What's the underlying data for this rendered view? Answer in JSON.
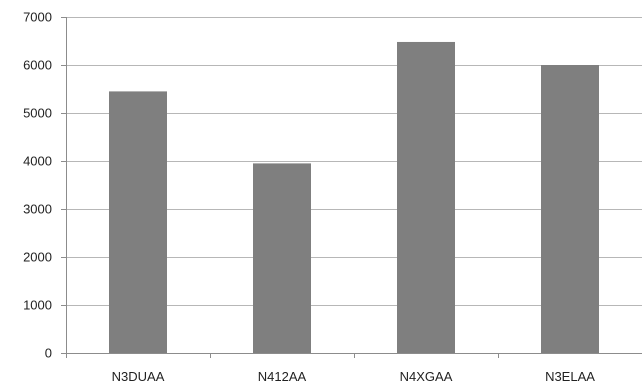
{
  "chart_data": {
    "type": "bar",
    "title": "",
    "xlabel": "",
    "ylabel": "",
    "categories": [
      "N3DUAA",
      "N412AA",
      "N4XGAA",
      "N3ELAA"
    ],
    "values": [
      5450,
      3950,
      6480,
      6000
    ],
    "ylim": [
      0,
      7000
    ],
    "yticks": [
      0,
      1000,
      2000,
      3000,
      4000,
      5000,
      6000,
      7000
    ],
    "ytick_labels": [
      "0",
      "1000",
      "2000",
      "3000",
      "4000",
      "5000",
      "6000",
      "7000"
    ],
    "grid": true,
    "legend": "none",
    "bar_color": "#7f7f7f"
  }
}
